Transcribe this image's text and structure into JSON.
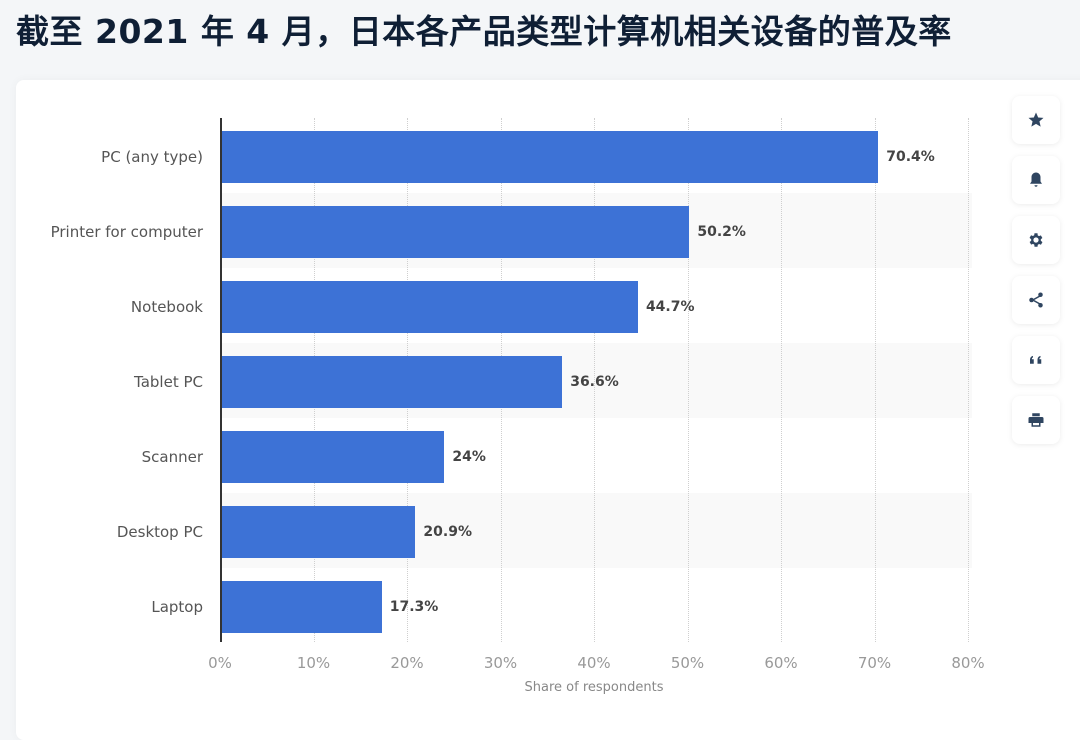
{
  "header": {
    "title": "截至 2021 年 4 月，日本各产品类型计算机相关设备的普及率"
  },
  "toolbar": {
    "buttons": [
      {
        "name": "favorite",
        "icon": "star-icon"
      },
      {
        "name": "notify",
        "icon": "bell-icon"
      },
      {
        "name": "settings",
        "icon": "gear-icon"
      },
      {
        "name": "share",
        "icon": "share-icon"
      },
      {
        "name": "cite",
        "icon": "quote-icon"
      },
      {
        "name": "print",
        "icon": "printer-icon"
      }
    ]
  },
  "colors": {
    "bar": "#3d72d6",
    "title": "#0f1f35",
    "band": "#f9f9f9",
    "icon": "#2f4560"
  },
  "chart_data": {
    "type": "bar",
    "orientation": "horizontal",
    "title": "截至 2021 年 4 月，日本各产品类型计算机相关设备的普及率",
    "categories": [
      "PC (any type)",
      "Printer for computer",
      "Notebook",
      "Tablet PC",
      "Scanner",
      "Desktop PC",
      "Laptop"
    ],
    "values": [
      70.4,
      50.2,
      44.7,
      36.6,
      24,
      20.9,
      17.3
    ],
    "value_labels": [
      "70.4%",
      "50.2%",
      "44.7%",
      "36.6%",
      "24%",
      "20.9%",
      "17.3%"
    ],
    "xlabel": "Share of respondents",
    "ylabel": "",
    "xlim": [
      0,
      80
    ],
    "x_ticks": [
      "0%",
      "10%",
      "20%",
      "30%",
      "40%",
      "50%",
      "60%",
      "70%",
      "80%"
    ],
    "grid": "vertical dotted",
    "legend": "none"
  }
}
